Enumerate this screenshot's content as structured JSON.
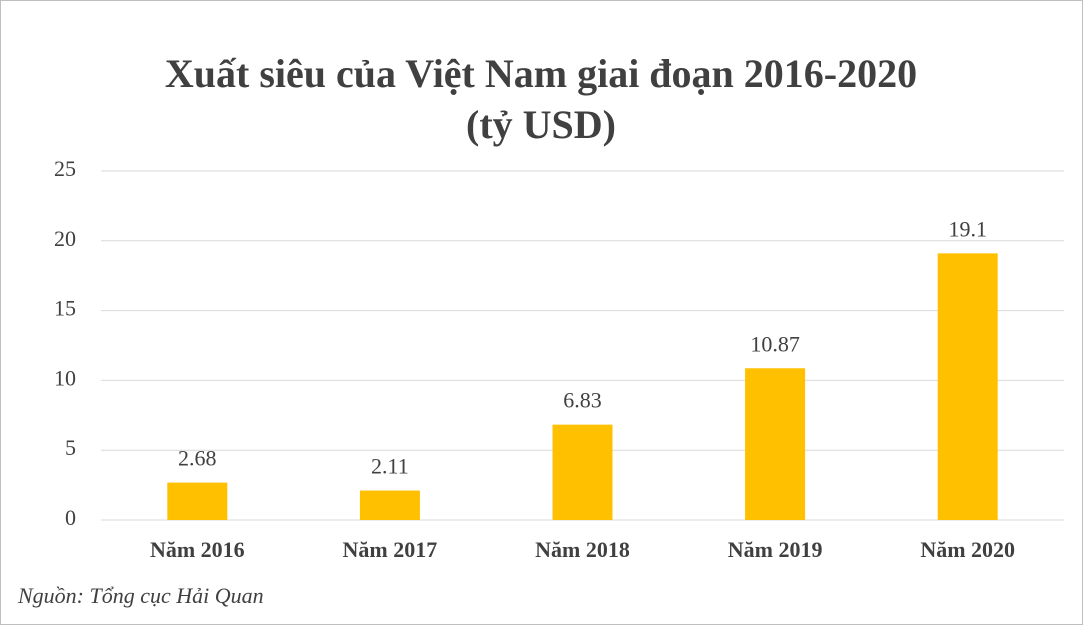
{
  "chart_data": {
    "type": "bar",
    "title": [
      "Xuất siêu của Việt Nam giai đoạn 2016-2020",
      "(tỷ USD)"
    ],
    "categories": [
      "Năm 2016",
      "Năm 2017",
      "Năm 2018",
      "Năm 2019",
      "Năm 2020"
    ],
    "values": [
      2.68,
      2.11,
      6.83,
      10.87,
      19.1
    ],
    "color": "#ffc000",
    "ylim": [
      0,
      25
    ],
    "yticks": [
      0,
      5,
      10,
      15,
      20,
      25
    ],
    "grid": true,
    "source": "Nguồn: Tổng cục Hải Quan"
  }
}
